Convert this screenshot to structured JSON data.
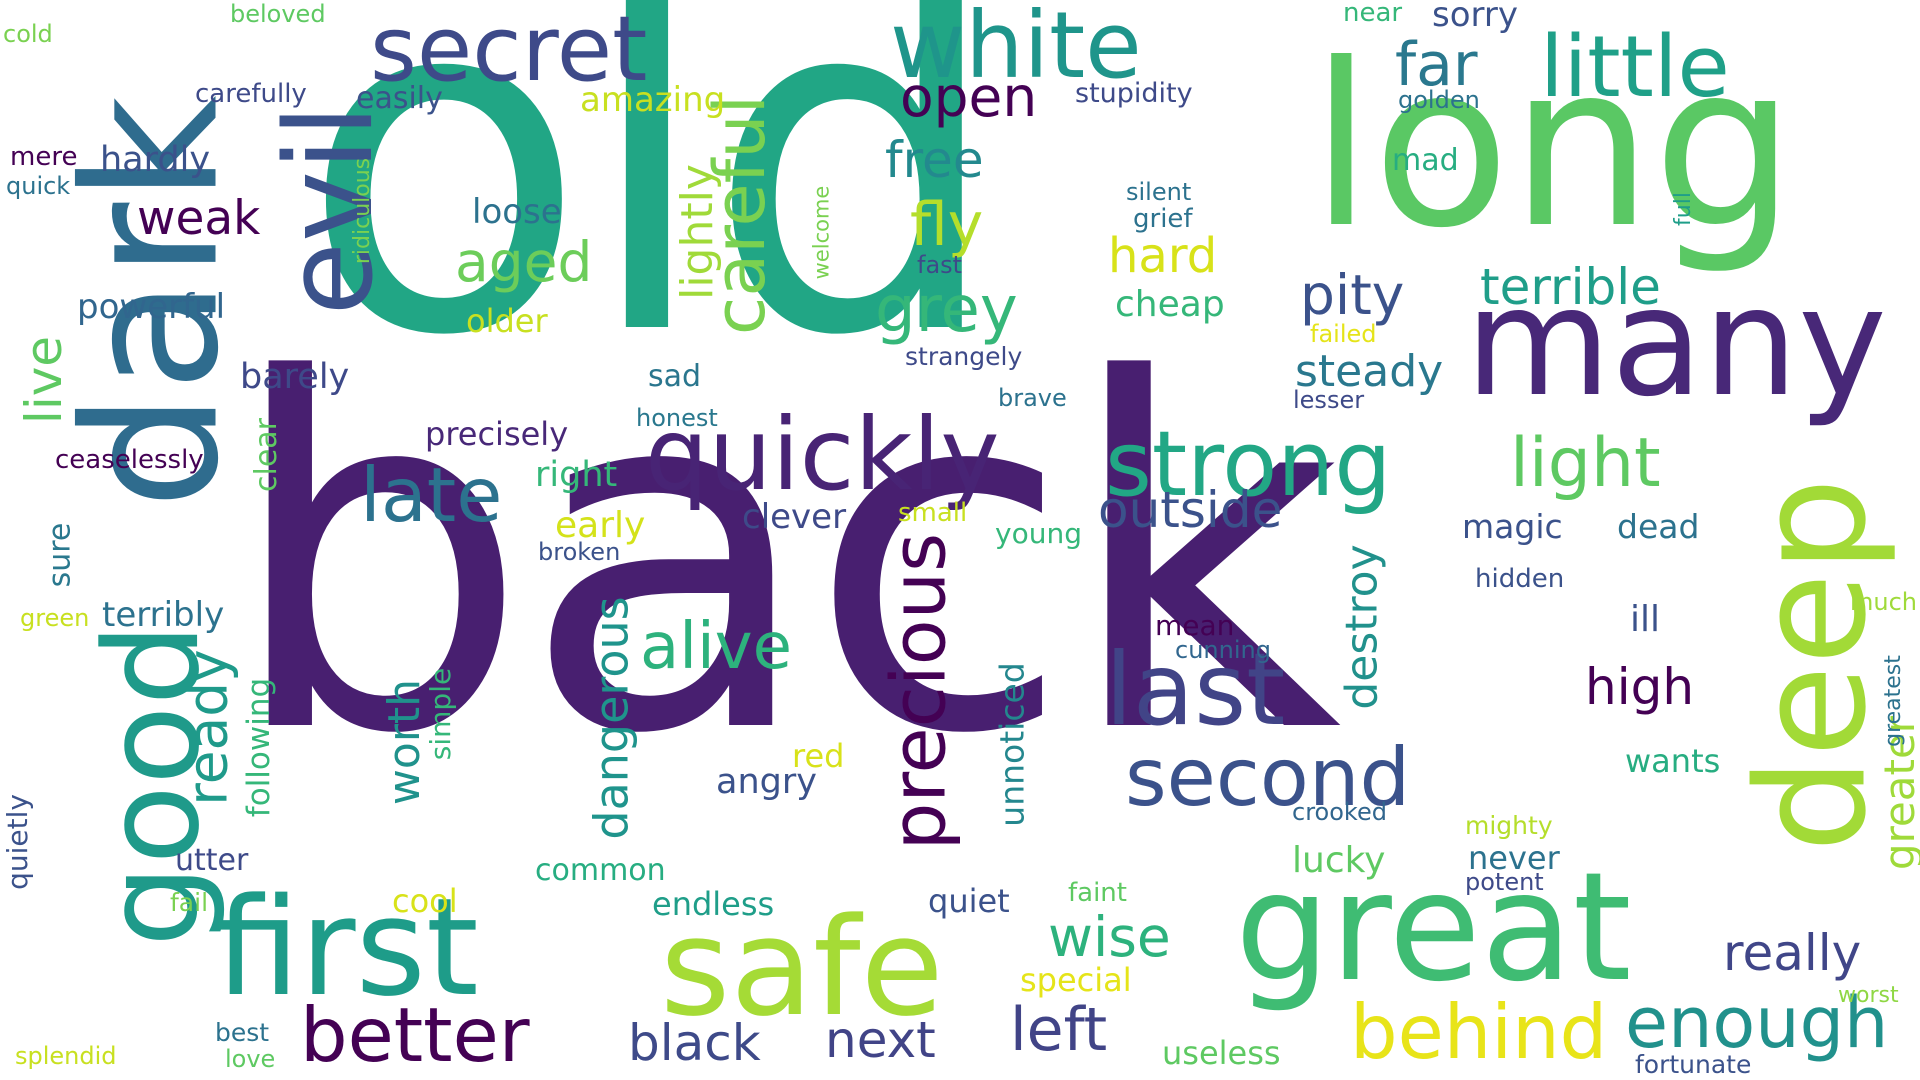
{
  "words": {
    "old": "old",
    "back": "back",
    "long": "long",
    "many": "many",
    "dark": "dark",
    "evil": "evil",
    "good": "good",
    "deep": "deep",
    "great": "great",
    "first": "first",
    "safe": "safe",
    "quickly": "quickly",
    "strong": "strong",
    "white": "white",
    "secret": "secret",
    "little": "little",
    "last": "last",
    "second": "second",
    "precious": "precious",
    "late": "late",
    "careful": "careful",
    "better": "better",
    "behind": "behind",
    "enough": "enough",
    "light": "light",
    "alive": "alive",
    "grey": "grey",
    "fly": "fly",
    "aged": "aged",
    "far": "far",
    "open": "open",
    "free": "free",
    "terrible": "terrible",
    "pity": "pity",
    "outside": "outside",
    "left": "left",
    "black": "black",
    "next": "next",
    "wise": "wise",
    "really": "really",
    "high": "high",
    "ready": "ready",
    "live": "live",
    "weak": "weak",
    "dangerous": "dangerous",
    "worth": "worth",
    "destroy": "destroy",
    "greater": "greater",
    "hard": "hard",
    "lightly": "lightly",
    "steady": "steady",
    "cheap": "cheap",
    "powerful": "powerful",
    "loose": "loose",
    "older": "older",
    "hardly": "hardly",
    "barely": "barely",
    "sad": "sad",
    "precisely": "precisely",
    "right": "right",
    "early": "early",
    "clever": "clever",
    "angry": "angry",
    "unnoticed": "unnoticed",
    "simple": "simple",
    "following": "following",
    "terribly": "terribly",
    "sure": "sure",
    "clear": "clear",
    "quietly": "quietly",
    "utter": "utter",
    "common": "common",
    "endless": "endless",
    "quiet": "quiet",
    "cool": "cool",
    "special": "special",
    "useless": "useless",
    "magic": "magic",
    "dead": "dead",
    "hidden": "hidden",
    "ill": "ill",
    "mean": "mean",
    "cunning": "cunning",
    "crooked": "crooked",
    "mighty": "mighty",
    "never": "never",
    "potent": "potent",
    "lucky": "lucky",
    "wants": "wants",
    "much": "much",
    "greatest": "greatest",
    "worst": "worst",
    "fortunate": "fortunate",
    "red": "red",
    "faint": "faint",
    "young": "young",
    "small": "small",
    "broken": "broken",
    "brave": "brave",
    "strangely": "strangely",
    "honest": "honest",
    "fast": "fast",
    "silent": "silent",
    "grief": "grief",
    "welcome": "welcome",
    "ridiculous": "ridiculous",
    "stupidity": "stupidity",
    "amazing": "amazing",
    "easily": "easily",
    "carefully": "carefully",
    "beloved": "beloved",
    "cold": "cold",
    "mere": "mere",
    "quick": "quick",
    "near": "near",
    "sorry": "sorry",
    "golden": "golden",
    "mad": "mad",
    "full": "full",
    "failed": "failed",
    "lesser": "lesser",
    "ceaselessly": "ceaselessly",
    "green": "green",
    "fail": "fail",
    "best": "best",
    "love": "love",
    "splendid": "splendid"
  }
}
